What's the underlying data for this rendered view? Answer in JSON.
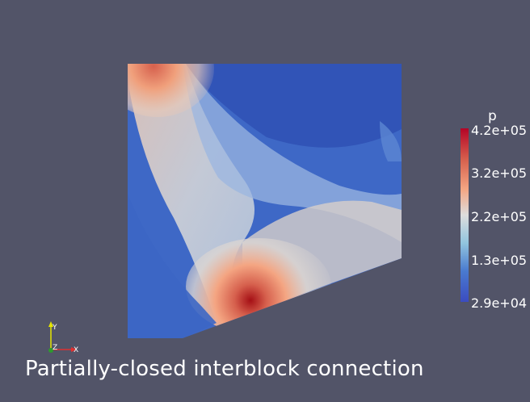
{
  "legend": {
    "title": "p",
    "ticks": [
      "4.2e+05",
      "3.2e+05",
      "2.2e+05",
      "1.3e+05",
      "2.9e+04"
    ],
    "colormap": [
      "#b40426",
      "#d6604d",
      "#f4a582",
      "#dddddd",
      "#92c5de",
      "#4a7bd0",
      "#3b4cc0"
    ]
  },
  "axes": {
    "y": "Y",
    "x": "X",
    "z": "Z"
  },
  "caption": "Partially-closed interblock connection",
  "colors": {
    "background": "#525468",
    "y_axis": "#e6e600",
    "x_axis": "#e03030",
    "z_axis": "#2e9a2e"
  }
}
